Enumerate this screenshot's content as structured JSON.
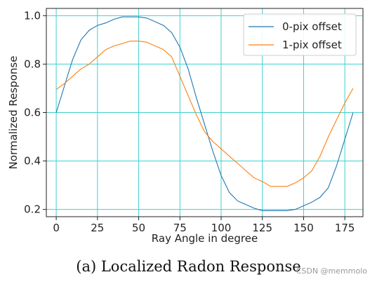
{
  "chart_data": {
    "type": "line",
    "title": "",
    "xlabel": "Ray Angle in degree",
    "ylabel": "Normalized Response",
    "xlim": [
      -6,
      186
    ],
    "ylim": [
      0.17,
      1.03
    ],
    "xticks": [
      0,
      25,
      50,
      75,
      100,
      125,
      150,
      175
    ],
    "yticks": [
      0.2,
      0.4,
      0.6,
      0.8,
      1.0
    ],
    "ytick_labels": [
      "0.2",
      "0.4",
      "0.6",
      "0.8",
      "1.0"
    ],
    "grid": true,
    "grid_color": "#40d0d0",
    "legend_position": "top-right",
    "series": [
      {
        "name": "0-pix offset",
        "color": "#1f77b4",
        "x": [
          0,
          5,
          10,
          15,
          20,
          25,
          30,
          35,
          40,
          45,
          50,
          55,
          60,
          65,
          70,
          75,
          80,
          85,
          90,
          95,
          100,
          105,
          110,
          115,
          120,
          125,
          130,
          135,
          140,
          145,
          150,
          155,
          160,
          165,
          170,
          175,
          180
        ],
        "y": [
          0.6,
          0.71,
          0.82,
          0.9,
          0.94,
          0.96,
          0.97,
          0.985,
          0.995,
          0.995,
          0.995,
          0.99,
          0.975,
          0.96,
          0.93,
          0.87,
          0.78,
          0.66,
          0.55,
          0.44,
          0.34,
          0.27,
          0.235,
          0.22,
          0.205,
          0.195,
          0.195,
          0.195,
          0.195,
          0.2,
          0.215,
          0.23,
          0.25,
          0.29,
          0.38,
          0.49,
          0.6
        ]
      },
      {
        "name": "1-pix offset",
        "color": "#ff7f0e",
        "x": [
          0,
          5,
          10,
          15,
          20,
          25,
          30,
          35,
          40,
          45,
          50,
          55,
          60,
          65,
          70,
          75,
          80,
          85,
          90,
          95,
          100,
          105,
          110,
          115,
          120,
          125,
          130,
          135,
          140,
          145,
          150,
          155,
          160,
          165,
          170,
          175,
          180
        ],
        "y": [
          0.695,
          0.72,
          0.75,
          0.78,
          0.8,
          0.83,
          0.86,
          0.875,
          0.885,
          0.895,
          0.895,
          0.89,
          0.875,
          0.86,
          0.83,
          0.75,
          0.67,
          0.59,
          0.52,
          0.48,
          0.45,
          0.42,
          0.39,
          0.36,
          0.33,
          0.315,
          0.295,
          0.295,
          0.295,
          0.31,
          0.33,
          0.36,
          0.42,
          0.5,
          0.57,
          0.64,
          0.7
        ]
      }
    ]
  },
  "caption": "(a) Localized Radon Response",
  "watermark": "CSDN @memmolo"
}
